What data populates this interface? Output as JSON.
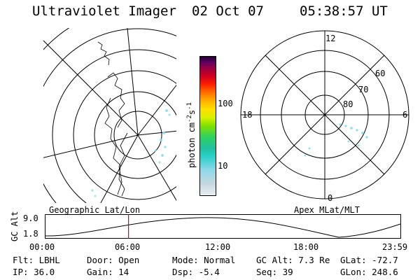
{
  "header": {
    "instrument": "Ultraviolet Imager",
    "date": "02 Oct 07",
    "time": "05:38:57 UT"
  },
  "geo_panel": {
    "label": "Geographic Lat/Lon"
  },
  "polar_panel": {
    "label": "Apex MLat/MLT",
    "mlt_labels": [
      "12",
      "18",
      "6",
      "0"
    ],
    "lat_labels": [
      "60",
      "70",
      "80"
    ]
  },
  "colorbar": {
    "unit_label": "photon cm",
    "exp1": "-2",
    "unit_mid": "s",
    "exp2": "-1",
    "tick_labels": [
      "100",
      "10"
    ],
    "colors": [
      "#e8eef4",
      "#c8d8e0",
      "#8fd8e8",
      "#2bd0c8",
      "#20c0a0",
      "#30d060",
      "#7ee000",
      "#d8f000",
      "#ffe000",
      "#ffb000",
      "#ff7000",
      "#ff2000",
      "#d00020",
      "#a00040",
      "#600060",
      "#200030"
    ]
  },
  "altitude_plot": {
    "axis_label": "GC Alt",
    "y_ticks": [
      "9.0",
      "1.8"
    ],
    "x_ticks": [
      "00:00",
      "06:00",
      "12:00",
      "18:00",
      "23:59"
    ],
    "current_time_hours": 5.65,
    "marker_color": "#e00000"
  },
  "status": {
    "flt": "Flt: LBHL",
    "ip": "IP: 36.0",
    "door": "Door: Open",
    "gain": "Gain: 14",
    "mode": "Mode: Normal",
    "dsp": "Dsp:   -5.4",
    "gc_alt": "GC Alt: 7.3 Re",
    "seq": "Seq: 39",
    "glat": "GLat: -72.7",
    "glon": "GLon: 248.6"
  }
}
